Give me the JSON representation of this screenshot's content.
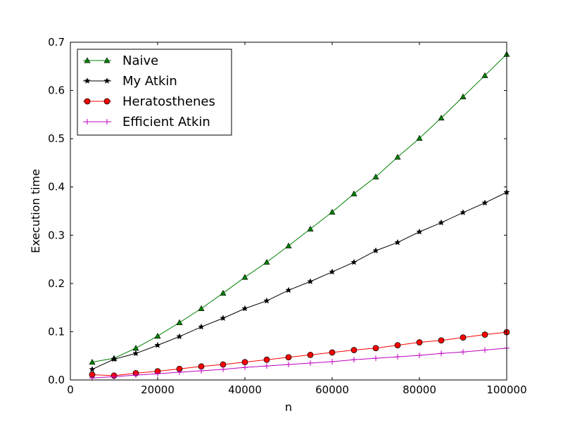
{
  "chart_data": {
    "type": "line",
    "title": "",
    "xlabel": "n",
    "ylabel": "Execution time",
    "xlim": [
      0,
      100000
    ],
    "ylim": [
      0.0,
      0.7
    ],
    "xticks": [
      0,
      20000,
      40000,
      60000,
      80000,
      100000
    ],
    "xtick_labels": [
      "0",
      "20000",
      "40000",
      "60000",
      "80000",
      "100000"
    ],
    "yticks": [
      0.0,
      0.1,
      0.2,
      0.3,
      0.4,
      0.5,
      0.6,
      0.7
    ],
    "ytick_labels": [
      "0.0",
      "0.1",
      "0.2",
      "0.3",
      "0.4",
      "0.5",
      "0.6",
      "0.7"
    ],
    "grid": false,
    "legend_position": "top-left",
    "x": [
      5000,
      10000,
      15000,
      20000,
      25000,
      30000,
      35000,
      40000,
      45000,
      50000,
      55000,
      60000,
      65000,
      70000,
      75000,
      80000,
      85000,
      90000,
      95000,
      100000
    ],
    "series": [
      {
        "name": "Naive",
        "color": "#008000",
        "marker": "triangle",
        "values": [
          0.037,
          0.045,
          0.066,
          0.091,
          0.119,
          0.148,
          0.18,
          0.213,
          0.244,
          0.278,
          0.313,
          0.348,
          0.386,
          0.421,
          0.462,
          0.501,
          0.543,
          0.587,
          0.631,
          0.675
        ]
      },
      {
        "name": "My Atkin",
        "color": "#000000",
        "marker": "star",
        "values": [
          0.022,
          0.043,
          0.055,
          0.072,
          0.09,
          0.11,
          0.128,
          0.148,
          0.164,
          0.186,
          0.204,
          0.224,
          0.244,
          0.268,
          0.285,
          0.307,
          0.326,
          0.347,
          0.367,
          0.389
        ]
      },
      {
        "name": "Heratosthenes",
        "color": "#ff0000",
        "marker": "circle",
        "values": [
          0.011,
          0.009,
          0.014,
          0.018,
          0.023,
          0.028,
          0.032,
          0.037,
          0.042,
          0.047,
          0.052,
          0.057,
          0.062,
          0.066,
          0.072,
          0.078,
          0.082,
          0.088,
          0.094,
          0.099
        ]
      },
      {
        "name": "Efficient Atkin",
        "color": "#bf00bf",
        "marker": "plus",
        "values": [
          0.004,
          0.007,
          0.01,
          0.013,
          0.016,
          0.019,
          0.022,
          0.026,
          0.029,
          0.032,
          0.035,
          0.038,
          0.042,
          0.045,
          0.048,
          0.051,
          0.055,
          0.058,
          0.062,
          0.066
        ]
      }
    ]
  }
}
